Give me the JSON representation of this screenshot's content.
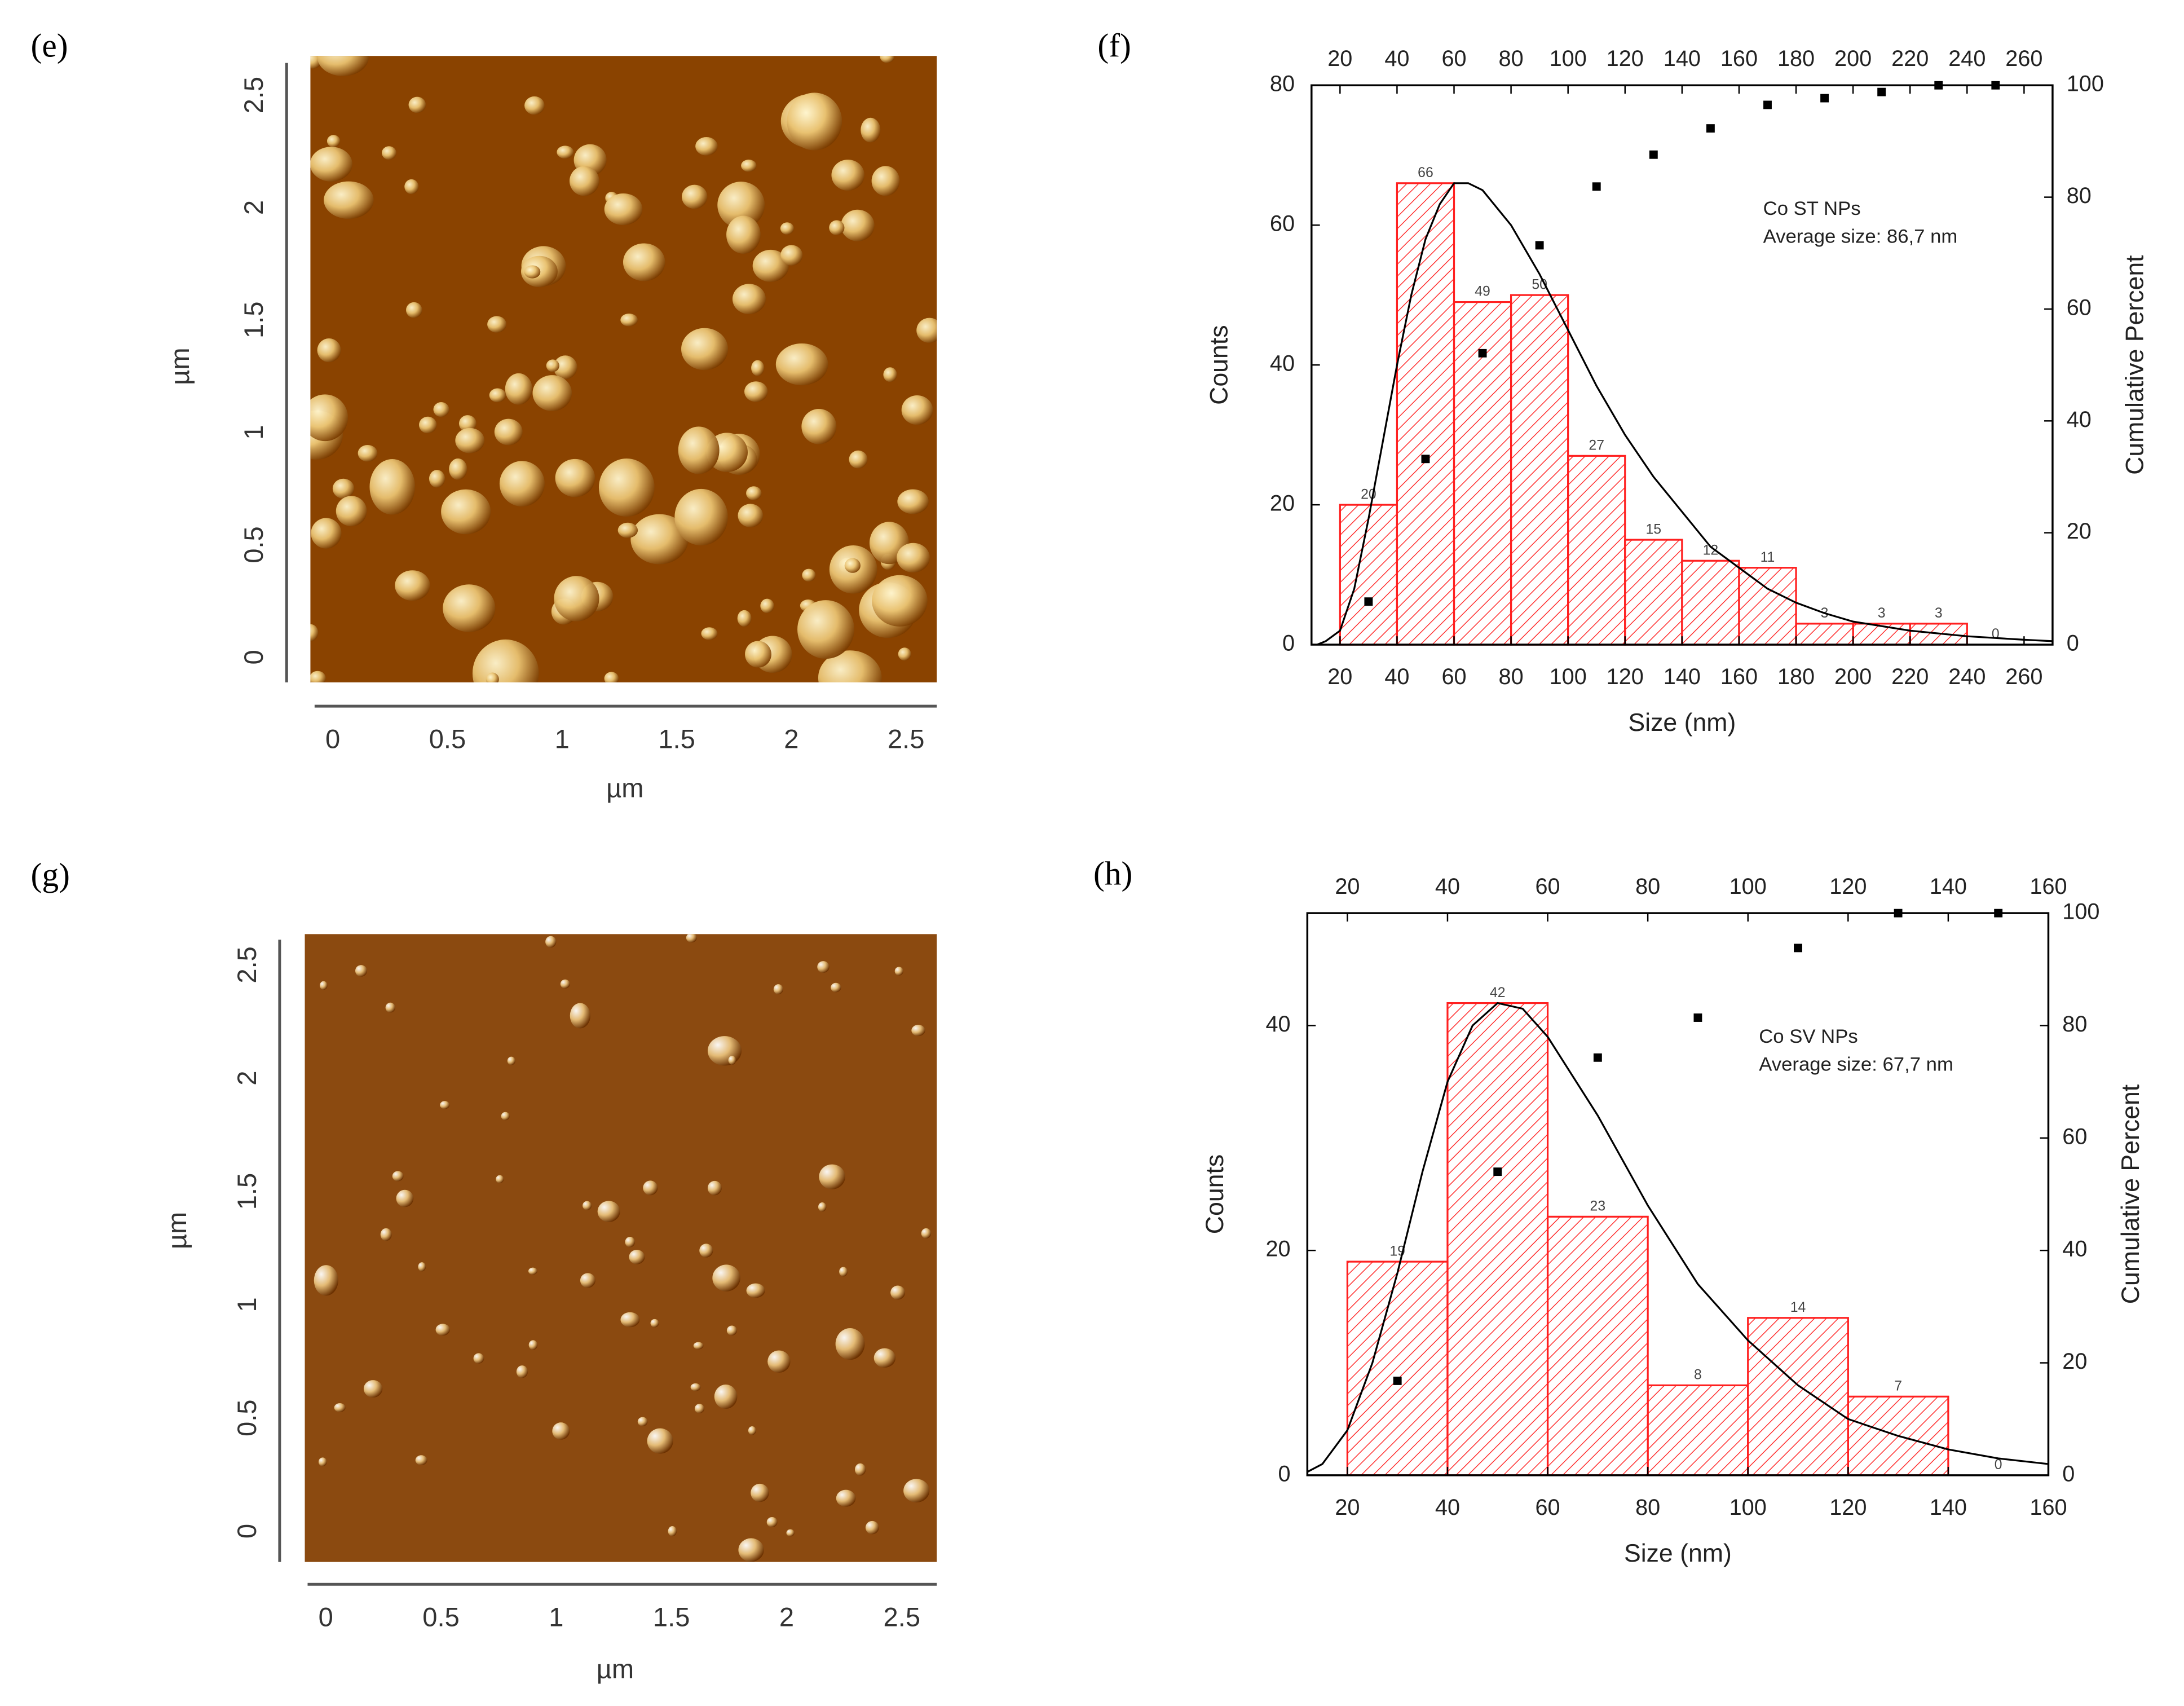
{
  "images": [
    {
      "label": "(e)",
      "xticks": [
        0,
        0.5,
        1,
        1.5,
        2,
        2.5
      ],
      "yticks": [
        0,
        0.5,
        1,
        1.5,
        2,
        2.5
      ],
      "xlabel": "µm",
      "ylabel": "µm"
    },
    {
      "label": "(g)",
      "xticks": [
        0,
        0.5,
        1,
        1.5,
        2,
        2.5
      ],
      "yticks": [
        0,
        0.5,
        1,
        1.5,
        2,
        2.5
      ],
      "xlabel": "µm",
      "ylabel": "µm"
    }
  ],
  "chart_data": [
    {
      "type": "histogram",
      "label": "(f)",
      "bins": [
        20,
        40,
        60,
        80,
        100,
        120,
        140,
        160,
        180,
        200,
        220,
        240,
        260
      ],
      "values": [
        20,
        66,
        49,
        50,
        27,
        15,
        12,
        11,
        3,
        3,
        3,
        0
      ],
      "color": "#ff2020",
      "curve": {
        "x": [
          12,
          15,
          20,
          25,
          30,
          35,
          40,
          45,
          50,
          55,
          60,
          65,
          70,
          80,
          90,
          100,
          110,
          120,
          130,
          140,
          150,
          160,
          170,
          180,
          190,
          200,
          220,
          240,
          260,
          270
        ],
        "values": [
          0,
          0.5,
          2,
          8,
          18,
          29,
          40,
          50,
          58,
          63,
          66,
          66,
          65,
          60,
          53,
          45,
          37,
          30,
          24,
          19,
          14,
          11,
          8,
          6,
          4.5,
          3.3,
          2,
          1.2,
          0.7,
          0.5
        ],
        "color": "#000000"
      },
      "cumulative": {
        "x": [
          30,
          50,
          70,
          90,
          110,
          130,
          150,
          170,
          190,
          210,
          230,
          250
        ],
        "values": [
          7.7,
          33.2,
          52.1,
          71.4,
          81.9,
          87.6,
          92.3,
          96.5,
          97.7,
          98.8,
          100,
          100
        ],
        "axis": "y2",
        "color": "#000000"
      },
      "xlabel": "Size (nm)",
      "ylabel": "Counts",
      "y2label": "Cumulative Percent",
      "annotations": [
        "Co ST NPs",
        "Average size: 86,7 nm"
      ],
      "xlim": [
        10,
        270
      ],
      "ylim": [
        0,
        80
      ],
      "y2lim": [
        0,
        100
      ],
      "xticks": [
        20,
        40,
        60,
        80,
        100,
        120,
        140,
        160,
        180,
        200,
        220,
        240,
        260
      ],
      "yticks": [
        0,
        20,
        40,
        60,
        80
      ],
      "y2ticks": [
        0,
        20,
        40,
        60,
        80,
        100
      ]
    },
    {
      "type": "histogram",
      "label": "(h)",
      "bins": [
        20,
        40,
        60,
        80,
        100,
        120,
        140,
        160
      ],
      "values": [
        19,
        42,
        23,
        8,
        14,
        7,
        0
      ],
      "color": "#ff2020",
      "curve": {
        "x": [
          12,
          15,
          20,
          25,
          30,
          35,
          40,
          45,
          50,
          55,
          60,
          70,
          80,
          90,
          100,
          110,
          120,
          130,
          140,
          150,
          160
        ],
        "values": [
          0.3,
          1,
          4,
          10,
          18,
          27,
          35,
          40,
          42,
          41.5,
          39,
          32,
          24,
          17,
          12,
          8,
          5,
          3.5,
          2.3,
          1.5,
          1
        ],
        "color": "#000000"
      },
      "cumulative": {
        "x": [
          30,
          50,
          70,
          90,
          110,
          130,
          150
        ],
        "values": [
          16.8,
          54.0,
          74.3,
          81.4,
          93.8,
          100,
          100
        ],
        "axis": "y2",
        "color": "#000000"
      },
      "xlabel": "Size (nm)",
      "ylabel": "Counts",
      "y2label": "Cumulative Percent",
      "annotations": [
        "Co SV NPs",
        "Average size: 67,7 nm"
      ],
      "xlim": [
        12,
        160
      ],
      "ylim": [
        0,
        50
      ],
      "y2lim": [
        0,
        100
      ],
      "xticks": [
        20,
        40,
        60,
        80,
        100,
        120,
        140,
        160
      ],
      "yticks": [
        0,
        20,
        40
      ],
      "y2ticks": [
        0,
        20,
        40,
        60,
        80,
        100
      ]
    }
  ]
}
